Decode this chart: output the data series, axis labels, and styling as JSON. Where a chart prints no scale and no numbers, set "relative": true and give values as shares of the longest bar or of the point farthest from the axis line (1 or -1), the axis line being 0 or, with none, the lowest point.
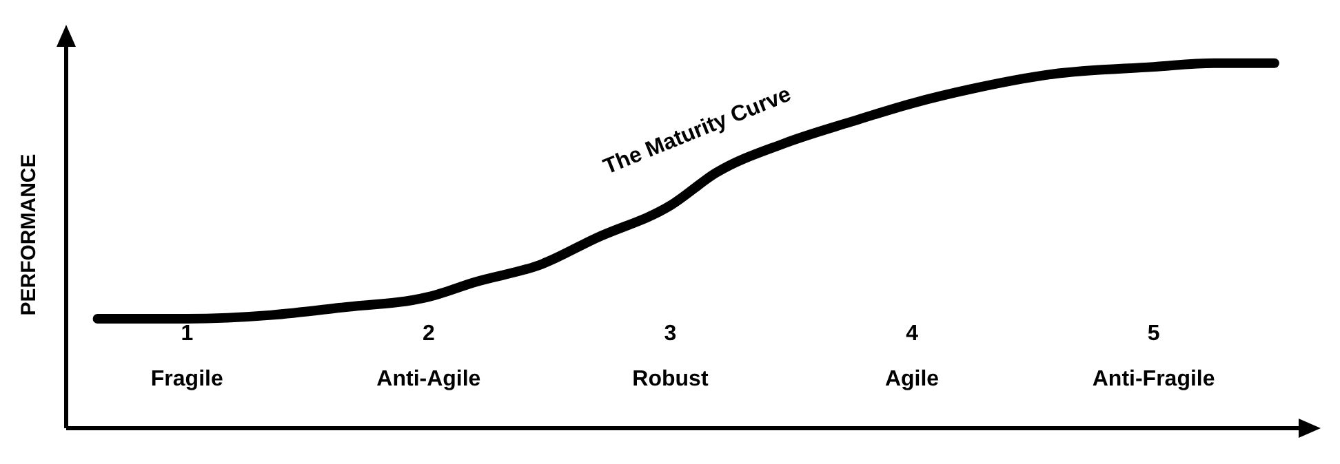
{
  "chart_data": {
    "type": "line",
    "ylabel": "PERFORMANCE",
    "relative": true,
    "grid": false,
    "legend": false,
    "marker": "none",
    "line_style": "solid",
    "xlim": [
      0.5,
      5.6
    ],
    "xticks": [
      {
        "value": 1,
        "label": "1\nFragile"
      },
      {
        "value": 2,
        "label": "2\nAnti-Agile"
      },
      {
        "value": 3,
        "label": "3\nRobust"
      },
      {
        "value": 4,
        "label": "4\nAgile"
      },
      {
        "value": 5,
        "label": "5\nAnti-Fragile"
      }
    ],
    "series": [
      {
        "name": "The Maturity Curve",
        "color": "#000000",
        "x": [
          0.63,
          1,
          1.35,
          1.63,
          2,
          2.19,
          2.47,
          2.69,
          3,
          3.19,
          3.47,
          3.75,
          4,
          4.25,
          4.58,
          5,
          5.25,
          5.5
        ],
        "values": [
          0.3,
          0.3,
          0.31,
          0.33,
          0.36,
          0.4,
          0.45,
          0.52,
          0.61,
          0.7,
          0.78,
          0.84,
          0.89,
          0.93,
          0.97,
          0.99,
          1,
          1
        ]
      }
    ]
  }
}
